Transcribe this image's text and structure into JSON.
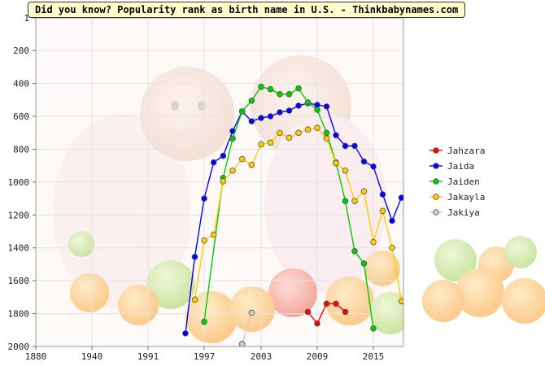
{
  "header": {
    "title": "Did you know? Popularity rank as birth name in U.S. - Thinkbabynames.com"
  },
  "chart_data": {
    "type": "line",
    "title": "Did you know? Popularity rank as birth name in U.S. - Thinkbabynames.com",
    "xlabel": "",
    "ylabel": "",
    "xlim": [
      1880,
      2018
    ],
    "ylim": [
      2000,
      1
    ],
    "y_inverted": true,
    "x_ticks": [
      1880,
      1940,
      1991,
      1997,
      2003,
      2009,
      2015
    ],
    "y_ticks": [
      1,
      200,
      400,
      600,
      800,
      1000,
      1200,
      1400,
      1600,
      1800,
      2000
    ],
    "grid": true,
    "background_photo": "babies-and-fruit-photo",
    "legend_position": "right",
    "series": [
      {
        "name": "Jahzara",
        "color": "#ff0000",
        "points": [
          [
            2008,
            1790
          ],
          [
            2009,
            1860
          ],
          [
            2010,
            1740
          ],
          [
            2011,
            1740
          ],
          [
            2012,
            1790
          ]
        ]
      },
      {
        "name": "Jaida",
        "color": "#0000ff",
        "points": [
          [
            1995,
            1920
          ],
          [
            1996,
            1455
          ],
          [
            1997,
            1100
          ],
          [
            1998,
            880
          ],
          [
            1999,
            840
          ],
          [
            2000,
            690
          ],
          [
            2001,
            570
          ],
          [
            2002,
            630
          ],
          [
            2003,
            610
          ],
          [
            2004,
            600
          ],
          [
            2005,
            575
          ],
          [
            2006,
            565
          ],
          [
            2007,
            535
          ],
          [
            2008,
            520
          ],
          [
            2009,
            530
          ],
          [
            2010,
            540
          ],
          [
            2011,
            715
          ],
          [
            2012,
            780
          ],
          [
            2013,
            780
          ],
          [
            2014,
            875
          ],
          [
            2015,
            905
          ],
          [
            2016,
            1075
          ],
          [
            2017,
            1235
          ],
          [
            2018,
            1095
          ]
        ]
      },
      {
        "name": "Jaiden",
        "color": "#00cc00",
        "points": [
          [
            1997,
            1850
          ],
          [
            1999,
            975
          ],
          [
            2000,
            735
          ],
          [
            2001,
            570
          ],
          [
            2002,
            505
          ],
          [
            2003,
            420
          ],
          [
            2004,
            435
          ],
          [
            2005,
            465
          ],
          [
            2006,
            465
          ],
          [
            2007,
            430
          ],
          [
            2008,
            515
          ],
          [
            2009,
            560
          ],
          [
            2010,
            700
          ],
          [
            2011,
            880
          ],
          [
            2012,
            1115
          ],
          [
            2013,
            1420
          ],
          [
            2014,
            1495
          ],
          [
            2015,
            1890
          ]
        ]
      },
      {
        "name": "Jakayla",
        "color": "#ffcc00",
        "points": [
          [
            1996,
            1715
          ],
          [
            1997,
            1355
          ],
          [
            1998,
            1320
          ],
          [
            1999,
            995
          ],
          [
            2000,
            930
          ],
          [
            2001,
            860
          ],
          [
            2002,
            895
          ],
          [
            2003,
            770
          ],
          [
            2004,
            760
          ],
          [
            2005,
            700
          ],
          [
            2006,
            730
          ],
          [
            2007,
            700
          ],
          [
            2008,
            680
          ],
          [
            2009,
            670
          ],
          [
            2010,
            735
          ],
          [
            2011,
            885
          ],
          [
            2012,
            930
          ],
          [
            2013,
            1115
          ],
          [
            2014,
            1055
          ],
          [
            2015,
            1365
          ],
          [
            2016,
            1175
          ],
          [
            2017,
            1400
          ],
          [
            2018,
            1725
          ]
        ]
      },
      {
        "name": "Jakiya",
        "color": "#cccccc",
        "points": [
          [
            2001,
            1985
          ],
          [
            2002,
            1795
          ]
        ]
      }
    ]
  }
}
